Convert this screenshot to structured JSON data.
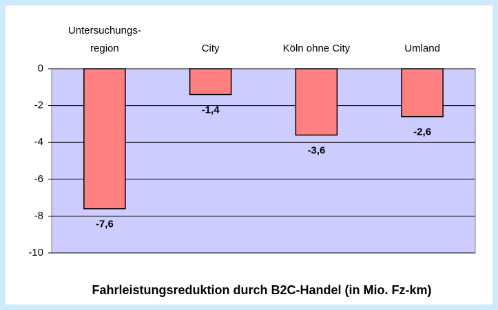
{
  "chart_data": {
    "type": "bar",
    "title": "Fahrleistungsreduktion durch B2C-Handel (in Mio. Fz-km)",
    "categories": [
      "Untersuchungs-\nregion",
      "City",
      "Köln ohne City",
      "Umland"
    ],
    "values": [
      -7.6,
      -1.4,
      -3.6,
      -2.6
    ],
    "value_labels": [
      "-7,6",
      "-1,4",
      "-3,6",
      "-2,6"
    ],
    "color": "#ff8080",
    "ylim": [
      -10,
      0
    ],
    "yticks": [
      0,
      -2,
      -4,
      -6,
      -8,
      -10
    ],
    "grid": true
  }
}
